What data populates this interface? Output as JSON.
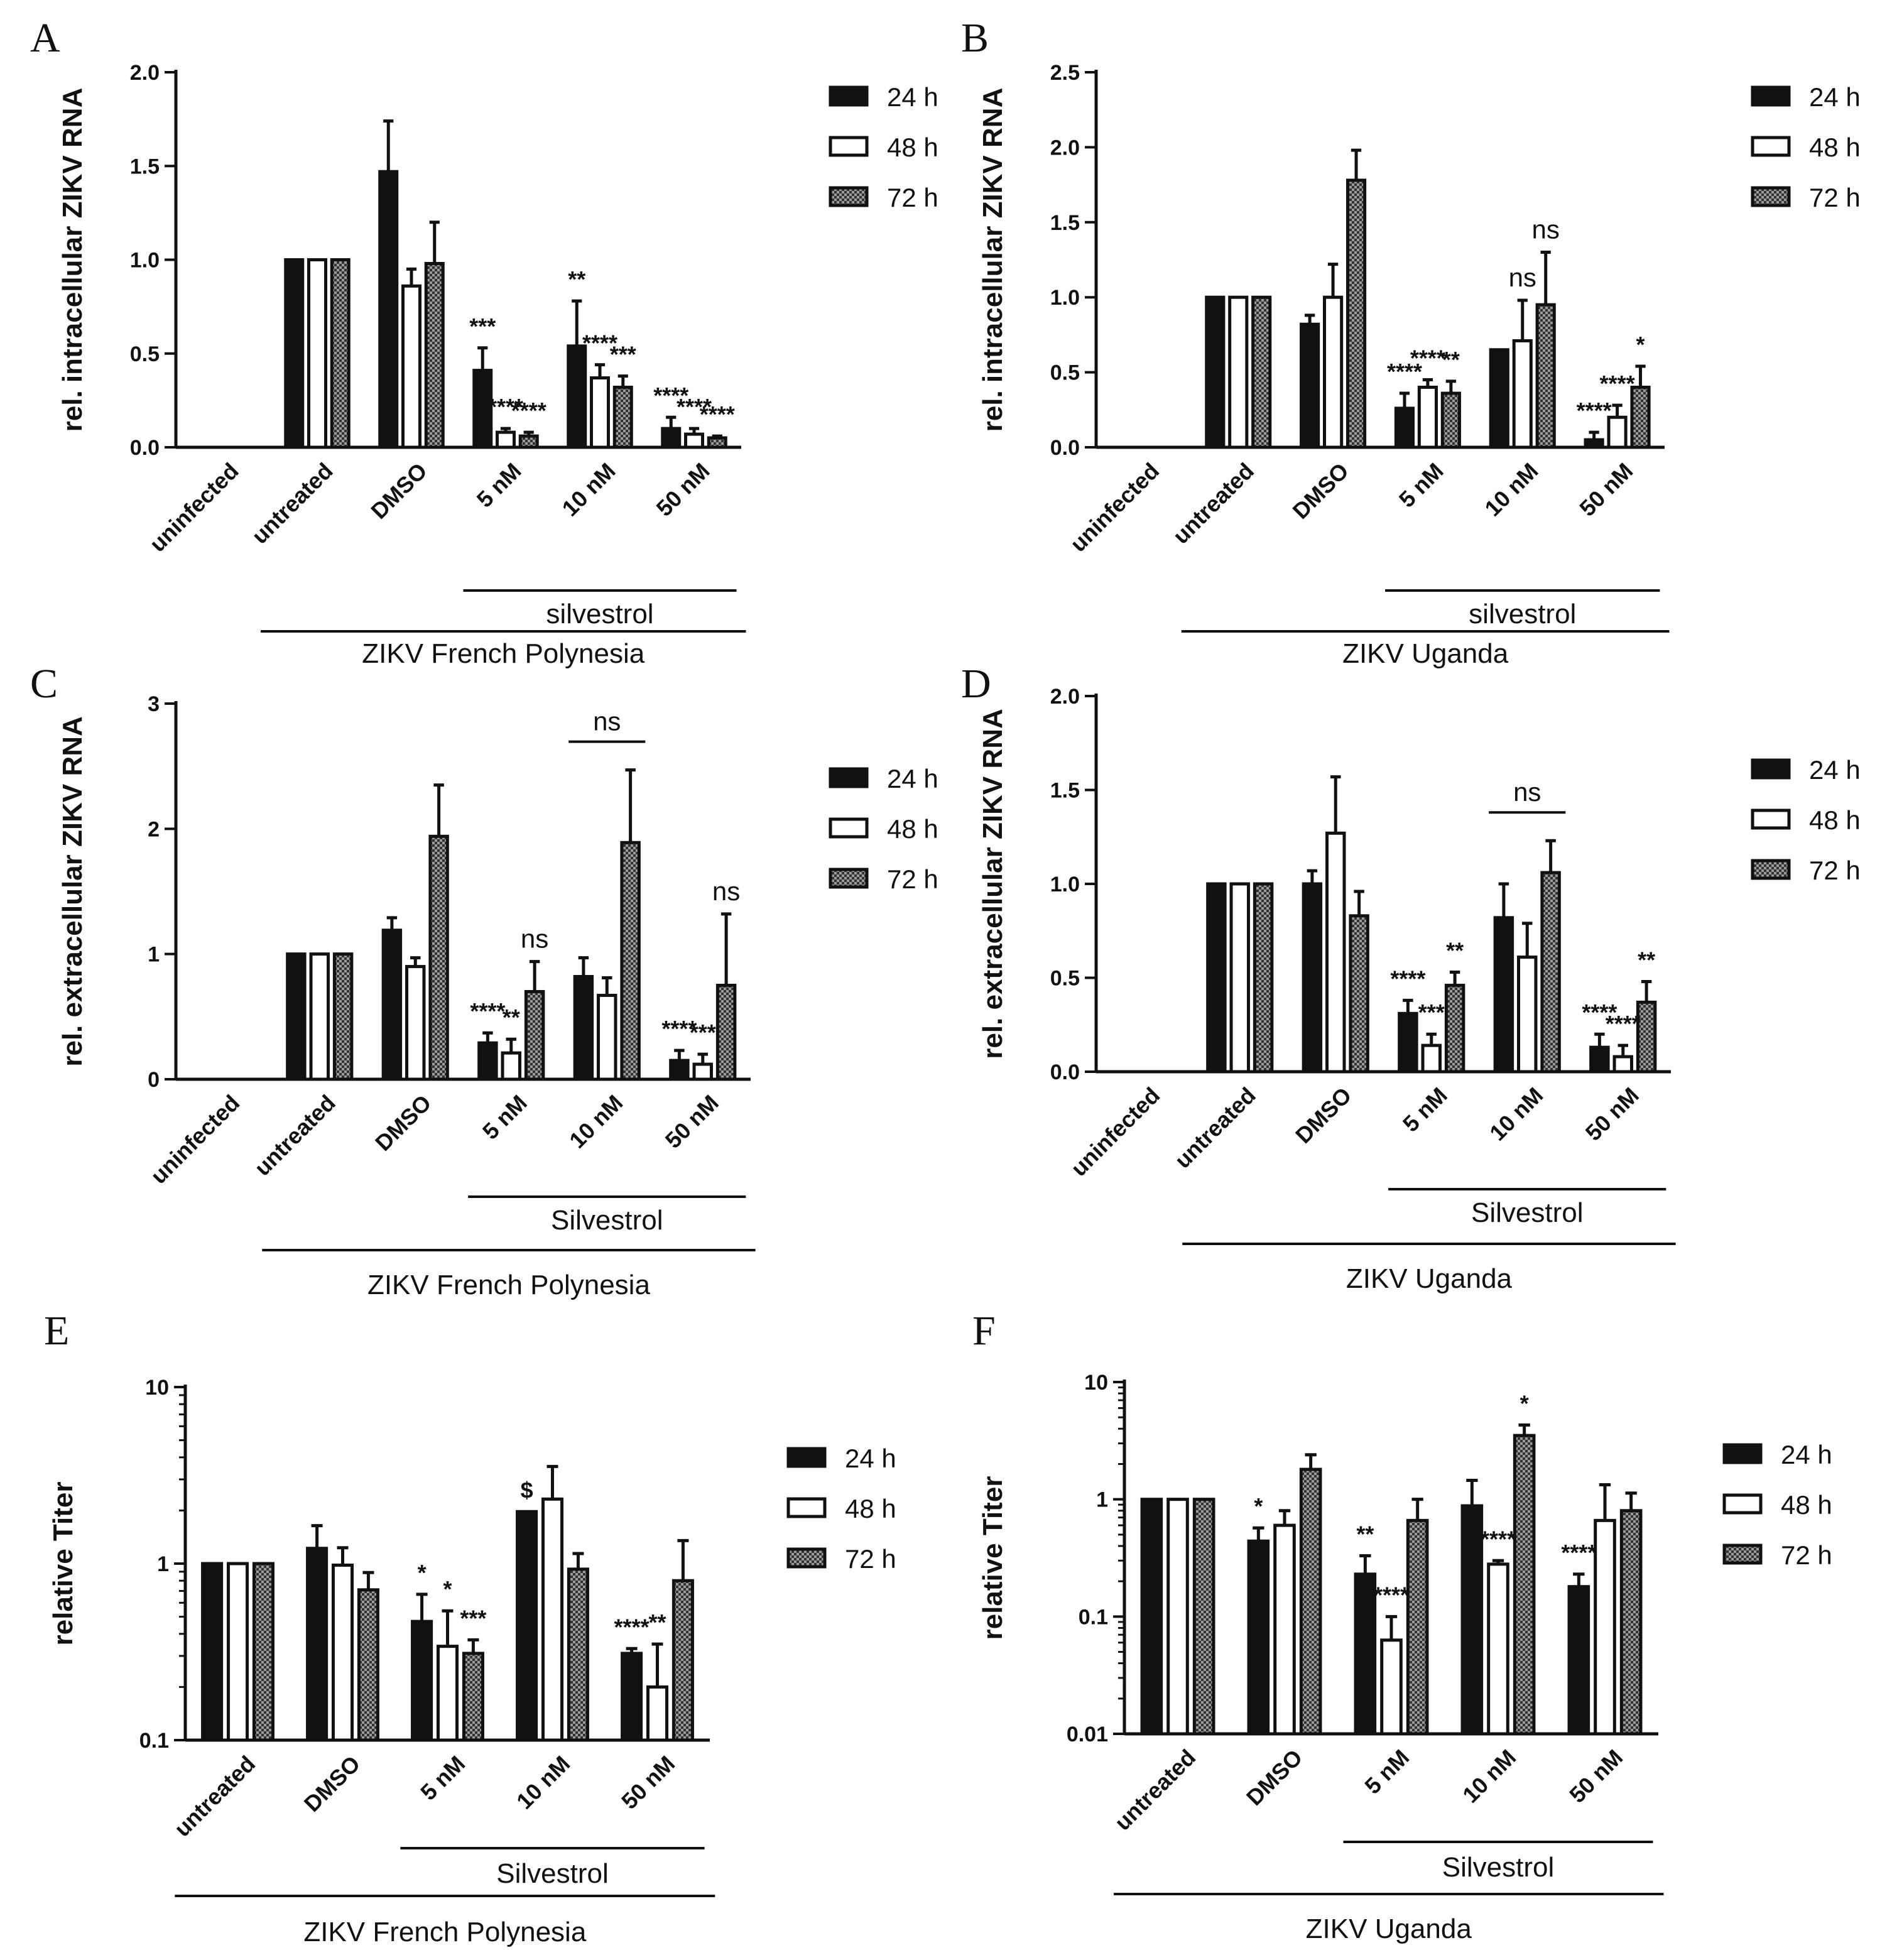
{
  "legend": {
    "series": [
      "24 h",
      "48 h",
      "72 h"
    ],
    "swatches": [
      {
        "fill": "#111111",
        "pattern": "solid"
      },
      {
        "fill": "#ffffff",
        "pattern": "open"
      },
      {
        "fill": "#7a7a7a",
        "pattern": "checker"
      }
    ]
  },
  "colors": {
    "ink": "#111111",
    "patternDark": "#333333",
    "patternLight": "#9a9a9a"
  },
  "chart_data": [
    {
      "id": "A",
      "letter": "A",
      "type": "bar",
      "scale": "linear",
      "ylabel": "rel. intracellular ZIKV RNA",
      "ylim": [
        0,
        2.0
      ],
      "yticks": [
        0.0,
        0.5,
        1.0,
        1.5,
        2.0
      ],
      "ytick_labels": [
        "0.0",
        "0.5",
        "1.0",
        "1.5",
        "2.0"
      ],
      "categories": [
        "uninfected",
        "untreated",
        "DMSO",
        "5 nM",
        "10 nM",
        "50 nM"
      ],
      "series": [
        {
          "name": "24 h",
          "values": [
            0,
            1.0,
            1.47,
            0.41,
            0.54,
            0.1
          ],
          "errors": [
            0,
            0,
            0.27,
            0.12,
            0.24,
            0.06
          ]
        },
        {
          "name": "48 h",
          "values": [
            0,
            1.0,
            0.86,
            0.08,
            0.37,
            0.07
          ],
          "errors": [
            0,
            0,
            0.09,
            0.02,
            0.07,
            0.03
          ]
        },
        {
          "name": "72 h",
          "values": [
            0,
            1.0,
            0.98,
            0.06,
            0.32,
            0.05
          ],
          "errors": [
            0,
            0,
            0.22,
            0.02,
            0.06,
            0.01
          ]
        }
      ],
      "annotations": [
        {
          "cat": 3,
          "series": 0,
          "text": "***"
        },
        {
          "cat": 3,
          "series": 1,
          "text": "****"
        },
        {
          "cat": 3,
          "series": 2,
          "text": "****"
        },
        {
          "cat": 4,
          "series": 0,
          "text": "**"
        },
        {
          "cat": 4,
          "series": 1,
          "text": "****"
        },
        {
          "cat": 4,
          "series": 2,
          "text": "***"
        },
        {
          "cat": 5,
          "series": 0,
          "text": "****"
        },
        {
          "cat": 5,
          "series": 1,
          "text": "****"
        },
        {
          "cat": 5,
          "series": 2,
          "text": "****"
        }
      ],
      "brackets": [],
      "group_inner": {
        "label": "silvestrol",
        "from": 3,
        "to": 5
      },
      "group_outer": {
        "label": "ZIKV French Polynesia",
        "from": 1,
        "to": 5
      }
    },
    {
      "id": "B",
      "letter": "B",
      "type": "bar",
      "scale": "linear",
      "ylabel": "rel. intracellular ZIKV RNA",
      "ylim": [
        0,
        2.5
      ],
      "yticks": [
        0.0,
        0.5,
        1.0,
        1.5,
        2.0,
        2.5
      ],
      "ytick_labels": [
        "0.0",
        "0.5",
        "1.0",
        "1.5",
        "2.0",
        "2.5"
      ],
      "categories": [
        "uninfected",
        "untreated",
        "DMSO",
        "5 nM",
        "10 nM",
        "50 nM"
      ],
      "series": [
        {
          "name": "24 h",
          "values": [
            0,
            1.0,
            0.82,
            0.26,
            0.65,
            0.05
          ],
          "errors": [
            0,
            0,
            0.06,
            0.1,
            0,
            0.05
          ]
        },
        {
          "name": "48 h",
          "values": [
            0,
            1.0,
            1.0,
            0.4,
            0.71,
            0.2
          ],
          "errors": [
            0,
            0,
            0.22,
            0.05,
            0.27,
            0.08
          ]
        },
        {
          "name": "72 h",
          "values": [
            0,
            1.0,
            1.78,
            0.36,
            0.95,
            0.4
          ],
          "errors": [
            0,
            0,
            0.2,
            0.08,
            0.35,
            0.14
          ]
        }
      ],
      "annotations": [
        {
          "cat": 3,
          "series": 0,
          "text": "****"
        },
        {
          "cat": 3,
          "series": 1,
          "text": "****"
        },
        {
          "cat": 3,
          "series": 2,
          "text": "**"
        },
        {
          "cat": 4,
          "series": 1,
          "text": "ns"
        },
        {
          "cat": 4,
          "series": 2,
          "text": "ns"
        },
        {
          "cat": 5,
          "series": 0,
          "text": "****"
        },
        {
          "cat": 5,
          "series": 1,
          "text": "****"
        },
        {
          "cat": 5,
          "series": 2,
          "text": "*"
        }
      ],
      "brackets": [],
      "group_inner": {
        "label": "silvestrol",
        "from": 3,
        "to": 5
      },
      "group_outer": {
        "label": "ZIKV Uganda",
        "from": 1,
        "to": 5
      }
    },
    {
      "id": "C",
      "letter": "C",
      "type": "bar",
      "scale": "linear",
      "ylabel": "rel. extracellular ZIKV RNA",
      "ylim": [
        0,
        3
      ],
      "yticks": [
        0,
        1,
        2,
        3
      ],
      "ytick_labels": [
        "0",
        "1",
        "2",
        "3"
      ],
      "categories": [
        "uninfected",
        "untreated",
        "DMSO",
        "5 nM",
        "10 nM",
        "50 nM"
      ],
      "series": [
        {
          "name": "24 h",
          "values": [
            0,
            1.0,
            1.19,
            0.29,
            0.82,
            0.15
          ],
          "errors": [
            0,
            0,
            0.1,
            0.08,
            0.15,
            0.08
          ]
        },
        {
          "name": "48 h",
          "values": [
            0,
            1.0,
            0.9,
            0.21,
            0.67,
            0.12
          ],
          "errors": [
            0,
            0,
            0.07,
            0.11,
            0.14,
            0.08
          ]
        },
        {
          "name": "72 h",
          "values": [
            0,
            1.0,
            1.94,
            0.7,
            1.89,
            0.75
          ],
          "errors": [
            0,
            0,
            0.41,
            0.24,
            0.58,
            0.57
          ]
        }
      ],
      "annotations": [
        {
          "cat": 3,
          "series": 0,
          "text": "****"
        },
        {
          "cat": 3,
          "series": 1,
          "text": "**"
        },
        {
          "cat": 3,
          "series": 2,
          "text": "ns"
        },
        {
          "cat": 5,
          "series": 0,
          "text": "****"
        },
        {
          "cat": 5,
          "series": 1,
          "text": "***"
        },
        {
          "cat": 5,
          "series": 2,
          "text": "ns"
        }
      ],
      "brackets": [
        {
          "cat": 4,
          "text": "ns"
        }
      ],
      "group_inner": {
        "label": "Silvestrol",
        "from": 3,
        "to": 5
      },
      "group_outer": {
        "label": "ZIKV French Polynesia",
        "from": 1,
        "to": 5
      }
    },
    {
      "id": "D",
      "letter": "D",
      "type": "bar",
      "scale": "linear",
      "ylabel": "rel. extracellular ZIKV RNA",
      "ylim": [
        0,
        2.0
      ],
      "yticks": [
        0.0,
        0.5,
        1.0,
        1.5,
        2.0
      ],
      "ytick_labels": [
        "0.0",
        "0.5",
        "1.0",
        "1.5",
        "2.0"
      ],
      "categories": [
        "uninfected",
        "untreated",
        "DMSO",
        "5 nM",
        "10 nM",
        "50 nM"
      ],
      "series": [
        {
          "name": "24 h",
          "values": [
            0,
            1.0,
            1.0,
            0.31,
            0.82,
            0.13
          ],
          "errors": [
            0,
            0,
            0.07,
            0.07,
            0.18,
            0.07
          ]
        },
        {
          "name": "48 h",
          "values": [
            0,
            1.0,
            1.27,
            0.14,
            0.61,
            0.08
          ],
          "errors": [
            0,
            0,
            0.3,
            0.06,
            0.18,
            0.06
          ]
        },
        {
          "name": "72 h",
          "values": [
            0,
            1.0,
            0.83,
            0.46,
            1.06,
            0.37
          ],
          "errors": [
            0,
            0,
            0.13,
            0.07,
            0.17,
            0.11
          ]
        }
      ],
      "annotations": [
        {
          "cat": 3,
          "series": 0,
          "text": "****"
        },
        {
          "cat": 3,
          "series": 1,
          "text": "***"
        },
        {
          "cat": 3,
          "series": 2,
          "text": "**"
        },
        {
          "cat": 5,
          "series": 0,
          "text": "****"
        },
        {
          "cat": 5,
          "series": 1,
          "text": "****"
        },
        {
          "cat": 5,
          "series": 2,
          "text": "**"
        }
      ],
      "brackets": [
        {
          "cat": 4,
          "text": "ns"
        }
      ],
      "group_inner": {
        "label": "Silvestrol",
        "from": 3,
        "to": 5
      },
      "group_outer": {
        "label": "ZIKV Uganda",
        "from": 1,
        "to": 5
      }
    },
    {
      "id": "E",
      "letter": "E",
      "type": "bar",
      "scale": "log",
      "ylabel": "relative Titer",
      "ylim": [
        0.1,
        10
      ],
      "yticks": [
        0.1,
        1,
        10
      ],
      "ytick_labels": [
        "0.1",
        "1",
        "10"
      ],
      "categories": [
        "untreated",
        "DMSO",
        "5 nM",
        "10 nM",
        "50 nM"
      ],
      "series": [
        {
          "name": "24 h",
          "values": [
            1.0,
            1.22,
            0.47,
            1.97,
            0.31
          ],
          "errors": [
            0,
            0.42,
            0.2,
            0,
            0.02
          ]
        },
        {
          "name": "48 h",
          "values": [
            1.0,
            0.98,
            0.34,
            2.32,
            0.2
          ],
          "errors": [
            0,
            0.25,
            0.2,
            1.23,
            0.15
          ]
        },
        {
          "name": "72 h",
          "values": [
            1.0,
            0.71,
            0.31,
            0.93,
            0.8
          ],
          "errors": [
            0,
            0.18,
            0.06,
            0.21,
            0.55
          ]
        }
      ],
      "annotations": [
        {
          "cat": 2,
          "series": 0,
          "text": "*"
        },
        {
          "cat": 2,
          "series": 1,
          "text": "*"
        },
        {
          "cat": 2,
          "series": 2,
          "text": "***"
        },
        {
          "cat": 3,
          "series": 0,
          "text": "$"
        },
        {
          "cat": 4,
          "series": 0,
          "text": "****"
        },
        {
          "cat": 4,
          "series": 1,
          "text": "**"
        }
      ],
      "brackets": [],
      "group_inner": {
        "label": "Silvestrol",
        "from": 2,
        "to": 4
      },
      "group_outer": {
        "label": "ZIKV French Polynesia",
        "from": 0,
        "to": 4
      }
    },
    {
      "id": "F",
      "letter": "F",
      "type": "bar",
      "scale": "log",
      "ylabel": "relative Titer",
      "ylim": [
        0.01,
        10
      ],
      "yticks": [
        0.01,
        0.1,
        1,
        10
      ],
      "ytick_labels": [
        "0.01",
        "0.1",
        "1",
        "10"
      ],
      "categories": [
        "untreated",
        "DMSO",
        "5 nM",
        "10 nM",
        "50 nM"
      ],
      "series": [
        {
          "name": "24 h",
          "values": [
            1.0,
            0.44,
            0.23,
            0.88,
            0.18
          ],
          "errors": [
            0,
            0.13,
            0.1,
            0.57,
            0.05
          ]
        },
        {
          "name": "48 h",
          "values": [
            1.0,
            0.6,
            0.063,
            0.28,
            0.66
          ],
          "errors": [
            0,
            0.2,
            0.037,
            0.02,
            0.67
          ]
        },
        {
          "name": "72 h",
          "values": [
            1.0,
            1.8,
            0.66,
            3.5,
            0.8
          ],
          "errors": [
            0,
            0.6,
            0.34,
            0.8,
            0.33
          ]
        }
      ],
      "annotations": [
        {
          "cat": 1,
          "series": 0,
          "text": "*"
        },
        {
          "cat": 2,
          "series": 0,
          "text": "**"
        },
        {
          "cat": 2,
          "series": 1,
          "text": "****"
        },
        {
          "cat": 3,
          "series": 1,
          "text": "****"
        },
        {
          "cat": 3,
          "series": 2,
          "text": "*"
        },
        {
          "cat": 4,
          "series": 0,
          "text": "****"
        }
      ],
      "brackets": [],
      "group_inner": {
        "label": "Silvestrol",
        "from": 2,
        "to": 4
      },
      "group_outer": {
        "label": "ZIKV Uganda",
        "from": 0,
        "to": 4
      }
    }
  ]
}
